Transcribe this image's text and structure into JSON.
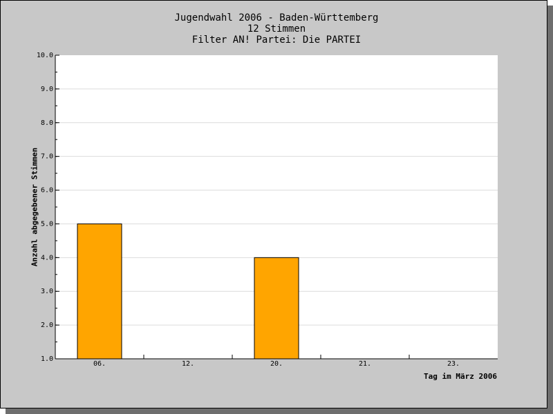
{
  "chart_data": {
    "type": "bar",
    "title": "Jugendwahl 2006 - Baden-Württemberg",
    "subtitle": "12 Stimmen",
    "subtitle2": "Filter AN! Partei: Die PARTEI",
    "xlabel": "Tag im März 2006",
    "ylabel": "Anzahl abgegebener Stimmen",
    "categories": [
      "06.",
      "12.",
      "20.",
      "21.",
      "23."
    ],
    "values": [
      5,
      1,
      4,
      1,
      1
    ],
    "ylim": [
      1,
      10
    ],
    "yticks": [
      "1.0",
      "2.0",
      "3.0",
      "4.0",
      "5.0",
      "6.0",
      "7.0",
      "8.0",
      "9.0",
      "10.0"
    ],
    "grid": true,
    "bar_color": "#ffa500",
    "background": "#c8c8c8",
    "plot_background": "#ffffff"
  }
}
